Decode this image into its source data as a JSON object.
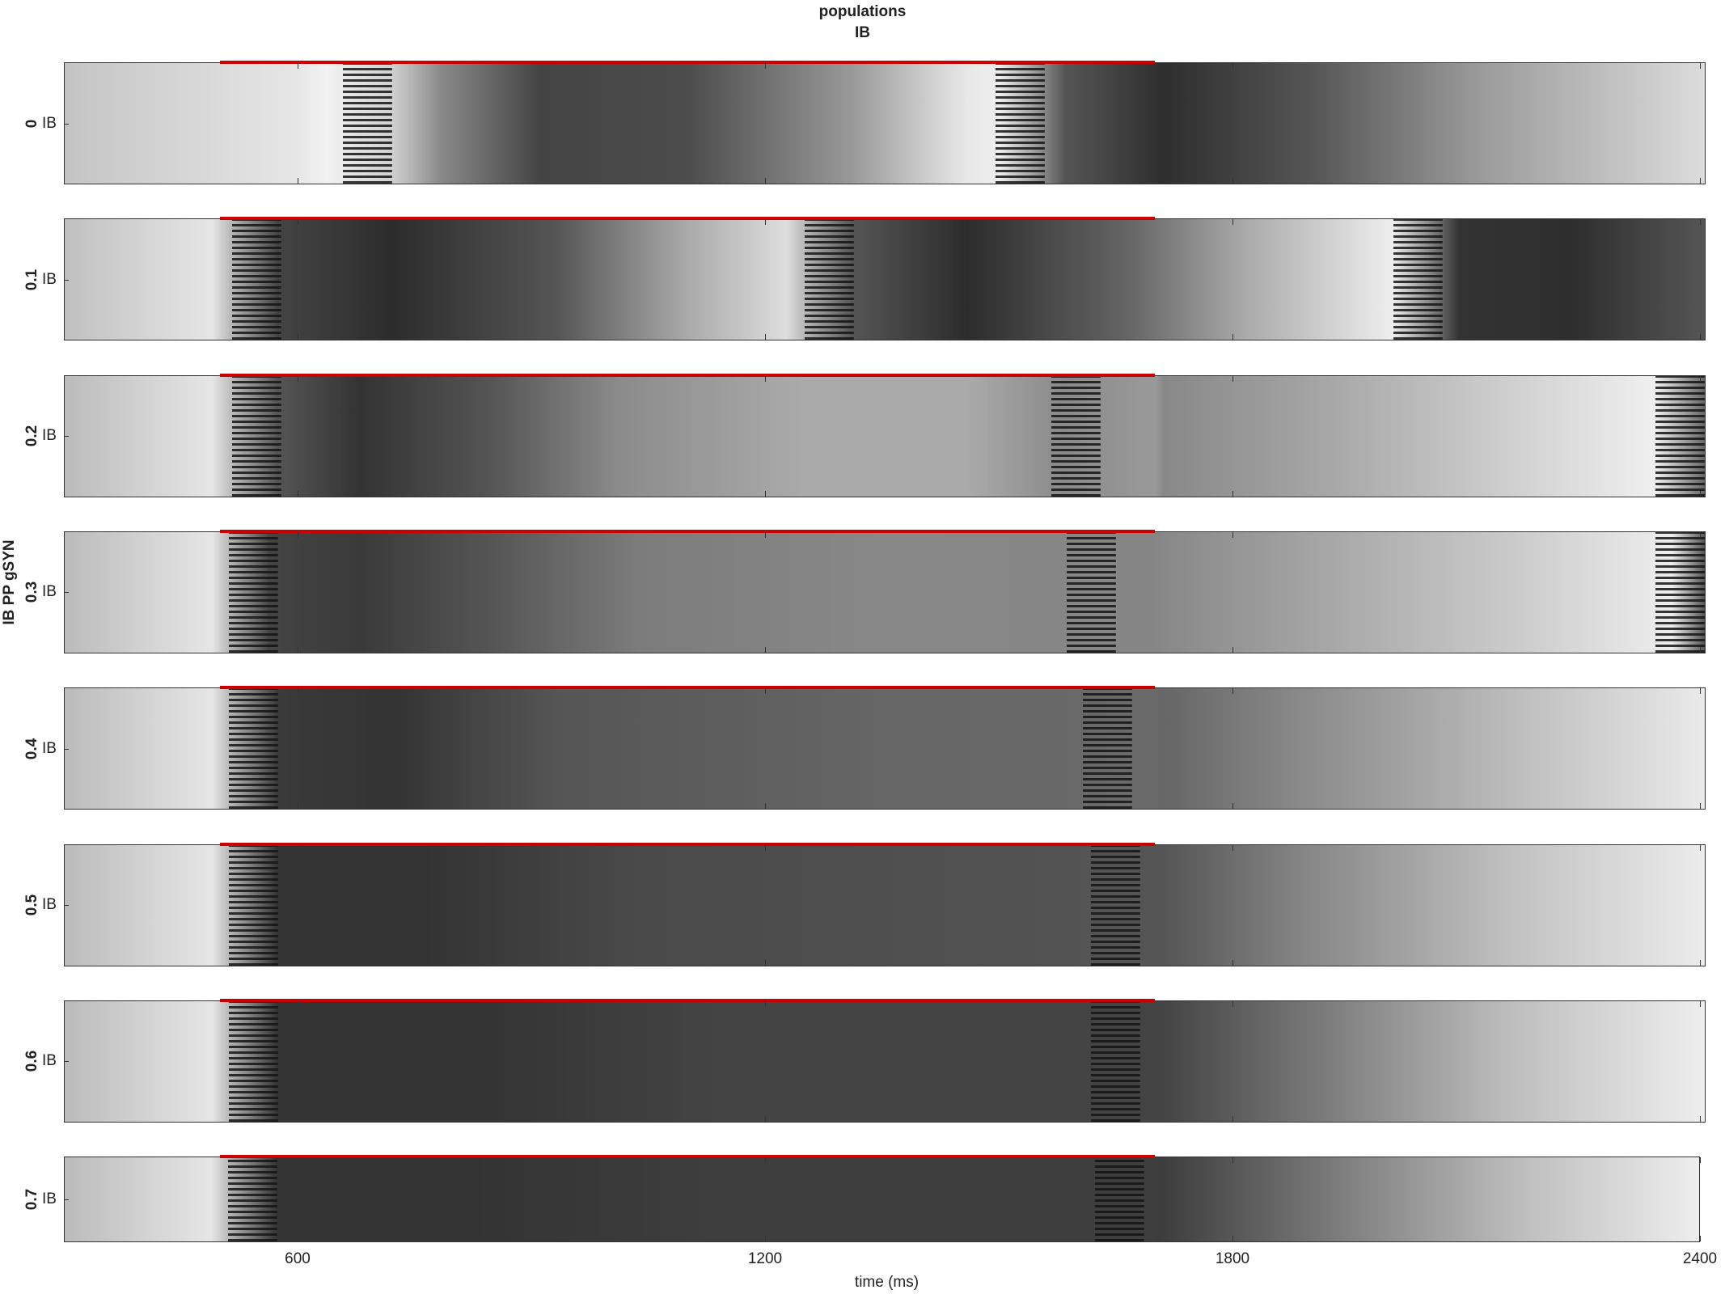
{
  "chart_data": {
    "type": "raster",
    "title": "populations",
    "subtitle": "IB",
    "ylabel": "IB PP gSYN",
    "xlabel": "time (ms)",
    "xlim": [
      300,
      2400
    ],
    "xticks": [
      600,
      1200,
      1800,
      2400
    ],
    "stimulus": [
      500,
      1700
    ],
    "stimulus_color": "#cc0000",
    "panels": [
      {
        "label": "0",
        "population": "IB"
      },
      {
        "label": "0.1",
        "population": "IB"
      },
      {
        "label": "0.2",
        "population": "IB"
      },
      {
        "label": "0.3",
        "population": "IB"
      },
      {
        "label": "0.4",
        "population": "IB"
      },
      {
        "label": "0.5",
        "population": "IB"
      },
      {
        "label": "0.6",
        "population": "IB"
      },
      {
        "label": "0.7",
        "population": "IB"
      }
    ]
  }
}
